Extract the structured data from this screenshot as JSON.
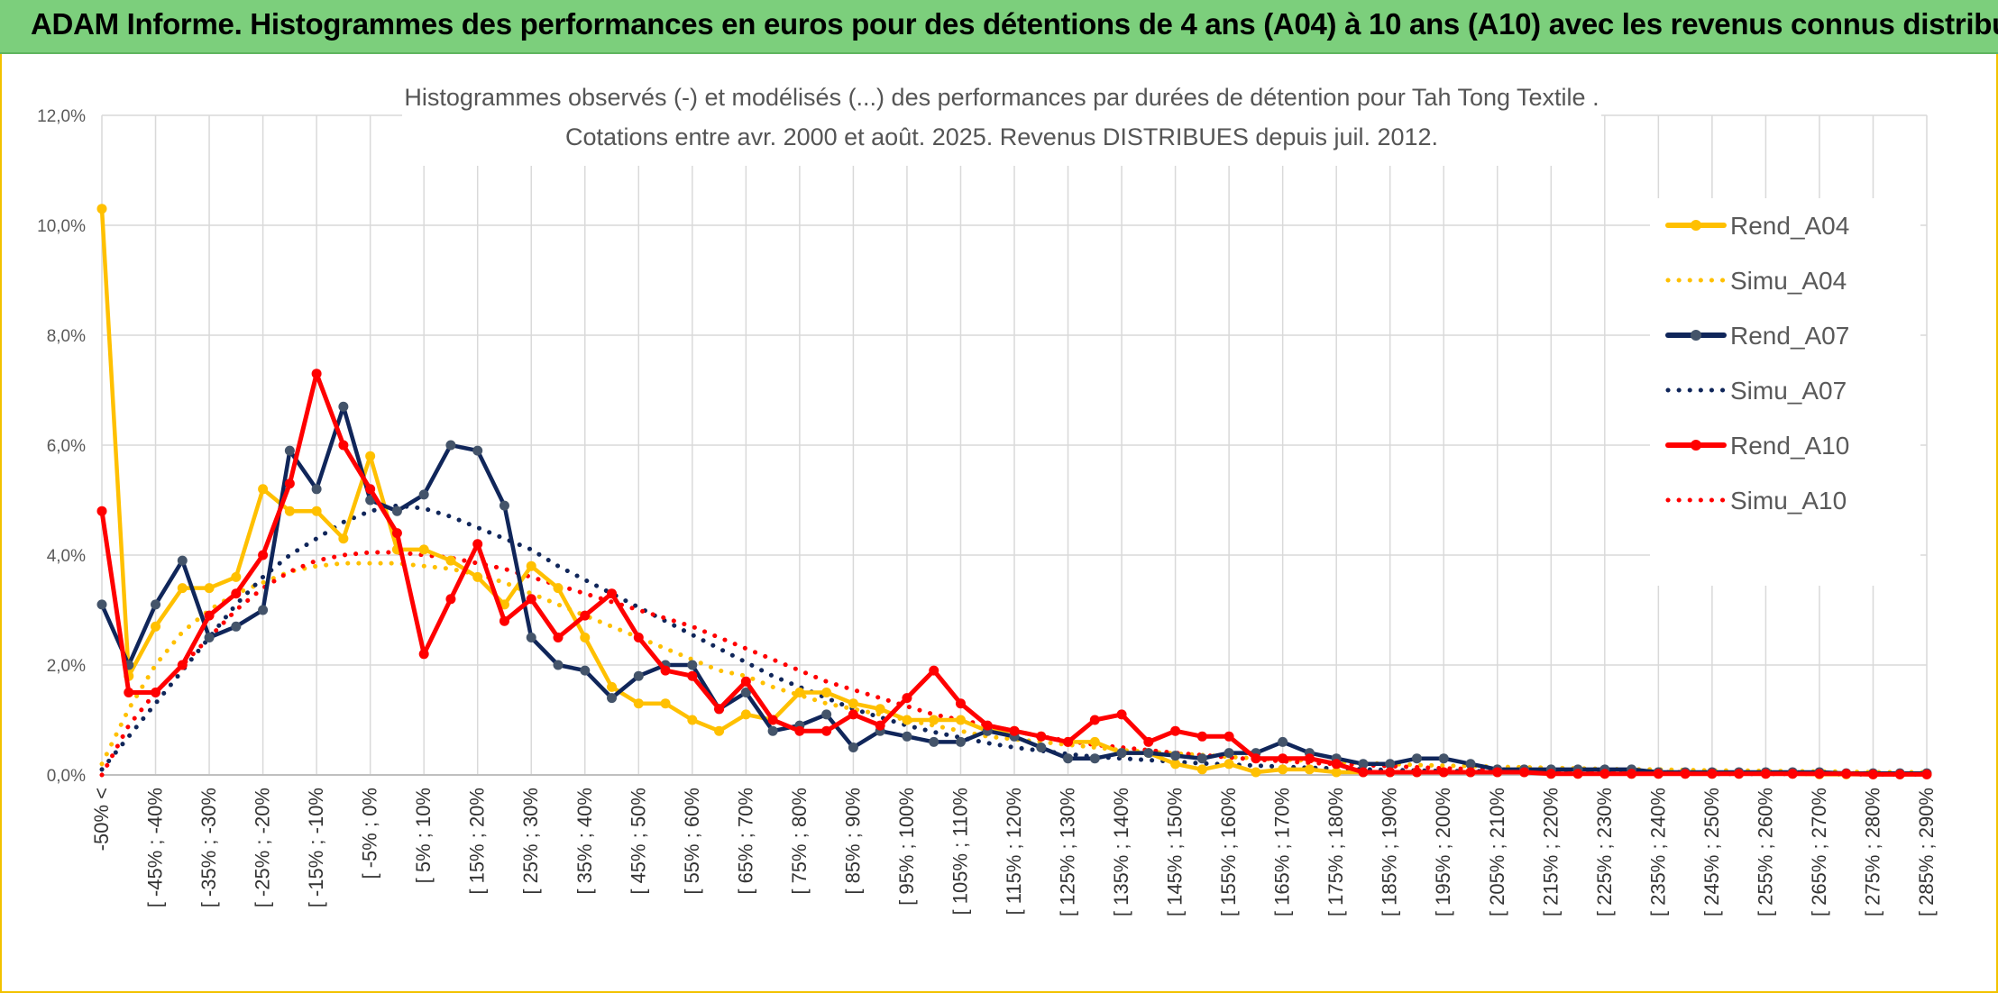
{
  "header": {
    "title": "ADAM Informe. Histogrammes des performances en euros pour des détentions de 4 ans (A04) à 10 ans (A10) avec les revenus connus distribués"
  },
  "chart_data": {
    "type": "line",
    "title_line1": "Histogrammes observés (-) et modélisés (...) des performances par durées de détention pour Tah Tong Textile .",
    "title_line2": "Cotations entre avr. 2000 et août. 2025. Revenus DISTRIBUES depuis juil. 2012.",
    "ylim": [
      0,
      12
    ],
    "yticks": [
      "0,0%",
      "2,0%",
      "4,0%",
      "6,0%",
      "8,0%",
      "10,0%",
      "12,0%"
    ],
    "grid": true,
    "legend_position": "right",
    "x_count": 69,
    "x_labels": [
      "-50% <",
      "[ -45% ; -40%",
      "[ -35% ; -30%",
      "[ -25% ; -20%",
      "[ -15% ; -10%",
      "[ -5% ; 0%",
      "[ 5% ; 10%",
      "[ 15% ; 20%",
      "[ 25% ; 30%",
      "[ 35% ; 40%",
      "[ 45% ; 50%",
      "[ 55% ; 60%",
      "[ 65% ; 70%",
      "[ 75% ; 80%",
      "[ 85% ; 90%",
      "[ 95% ; 100%",
      "[ 105% ; 110%",
      "[ 115% ; 120%",
      "[ 125% ; 130%",
      "[ 135% ; 140%",
      "[ 145% ; 150%",
      "[ 155% ; 160%",
      "[ 165% ; 170%",
      "[ 175% ; 180%",
      "[ 185% ; 190%",
      "[ 195% ; 200%",
      "[ 205% ; 210%",
      "[ 215% ; 220%",
      "[ 225% ; 230%",
      "[ 235% ; 240%",
      "[ 245% ; 250%",
      "[ 255% ; 260%",
      "[ 265% ; 270%",
      "[ 275% ; 280%",
      "[ 285% ; 290%"
    ],
    "series": [
      {
        "name": "Rend_A04",
        "color": "#ffc000",
        "style": "solid",
        "markers": true,
        "values": [
          10.3,
          1.8,
          2.7,
          3.4,
          3.4,
          3.6,
          5.2,
          4.8,
          4.8,
          4.3,
          5.8,
          4.1,
          4.1,
          3.9,
          3.6,
          3.1,
          3.8,
          3.4,
          2.5,
          1.6,
          1.3,
          1.3,
          1.0,
          0.8,
          1.1,
          1.0,
          1.5,
          1.5,
          1.3,
          1.2,
          1.0,
          1.0,
          1.0,
          0.8,
          0.8,
          0.7,
          0.6,
          0.6,
          0.4,
          0.4,
          0.2,
          0.1,
          0.2,
          0.05,
          0.1,
          0.1,
          0.05,
          0.05,
          0.05,
          0.05,
          0.05,
          0.05,
          0.05,
          0.05,
          0.02,
          0.02,
          0.02,
          0.02,
          0.02,
          0.02,
          0.02,
          0.02,
          0.02,
          0.02,
          0.01,
          0.01,
          0.01,
          0.01,
          0.01
        ]
      },
      {
        "name": "Simu_A04",
        "color": "#ffc000",
        "style": "dotted",
        "markers": false,
        "values": [
          0.2,
          1.2,
          2.0,
          2.6,
          3.0,
          3.3,
          3.5,
          3.7,
          3.8,
          3.85,
          3.85,
          3.85,
          3.8,
          3.75,
          3.65,
          3.5,
          3.3,
          3.1,
          2.9,
          2.7,
          2.5,
          2.3,
          2.1,
          1.9,
          1.8,
          1.6,
          1.45,
          1.3,
          1.2,
          1.1,
          1.0,
          0.9,
          0.8,
          0.7,
          0.65,
          0.6,
          0.55,
          0.5,
          0.45,
          0.42,
          0.39,
          0.36,
          0.33,
          0.3,
          0.28,
          0.26,
          0.24,
          0.22,
          0.2,
          0.18,
          0.17,
          0.16,
          0.15,
          0.14,
          0.13,
          0.12,
          0.11,
          0.1,
          0.1,
          0.09,
          0.08,
          0.08,
          0.07,
          0.07,
          0.06,
          0.06,
          0.05,
          0.05,
          0.05
        ]
      },
      {
        "name": "Rend_A07",
        "color": "#10265a",
        "style": "solid",
        "markers": true,
        "values": [
          3.1,
          2.0,
          3.1,
          3.9,
          2.5,
          2.7,
          3.0,
          5.9,
          5.2,
          6.7,
          5.0,
          4.8,
          5.1,
          6.0,
          5.9,
          4.9,
          2.5,
          2.0,
          1.9,
          1.4,
          1.8,
          2.0,
          2.0,
          1.2,
          1.5,
          0.8,
          0.9,
          1.1,
          0.5,
          0.8,
          0.7,
          0.6,
          0.6,
          0.8,
          0.7,
          0.5,
          0.3,
          0.3,
          0.4,
          0.4,
          0.35,
          0.3,
          0.4,
          0.4,
          0.6,
          0.4,
          0.3,
          0.2,
          0.2,
          0.3,
          0.3,
          0.2,
          0.1,
          0.1,
          0.1,
          0.1,
          0.1,
          0.1,
          0.05,
          0.05,
          0.05,
          0.05,
          0.05,
          0.05,
          0.05,
          0.03,
          0.03,
          0.03,
          0.03
        ]
      },
      {
        "name": "Simu_A07",
        "color": "#10265a",
        "style": "dotted",
        "markers": false,
        "values": [
          0.1,
          0.7,
          1.3,
          1.9,
          2.5,
          3.1,
          3.6,
          4.0,
          4.3,
          4.6,
          4.8,
          4.9,
          4.85,
          4.7,
          4.5,
          4.3,
          4.1,
          3.8,
          3.55,
          3.3,
          3.05,
          2.8,
          2.55,
          2.3,
          2.05,
          1.8,
          1.6,
          1.4,
          1.2,
          1.05,
          0.9,
          0.78,
          0.68,
          0.58,
          0.5,
          0.44,
          0.38,
          0.33,
          0.3,
          0.27,
          0.24,
          0.21,
          0.19,
          0.17,
          0.15,
          0.13,
          0.12,
          0.1,
          0.09,
          0.08,
          0.07,
          0.07,
          0.06,
          0.05,
          0.05,
          0.04,
          0.04,
          0.03,
          0.03,
          0.03,
          0.02,
          0.02,
          0.02,
          0.02,
          0.02,
          0.01,
          0.01,
          0.01,
          0.01
        ]
      },
      {
        "name": "Rend_A10",
        "color": "#ff0000",
        "style": "solid",
        "markers": true,
        "values": [
          4.8,
          1.5,
          1.5,
          2.0,
          2.9,
          3.3,
          4.0,
          5.3,
          7.3,
          6.0,
          5.2,
          4.4,
          2.2,
          3.2,
          4.2,
          2.8,
          3.2,
          2.5,
          2.9,
          3.3,
          2.5,
          1.9,
          1.8,
          1.2,
          1.7,
          1.0,
          0.8,
          0.8,
          1.1,
          0.9,
          1.4,
          1.9,
          1.3,
          0.9,
          0.8,
          0.7,
          0.6,
          1.0,
          1.1,
          0.6,
          0.8,
          0.7,
          0.7,
          0.3,
          0.3,
          0.3,
          0.2,
          0.05,
          0.05,
          0.05,
          0.05,
          0.05,
          0.05,
          0.05,
          0.02,
          0.02,
          0.02,
          0.02,
          0.02,
          0.02,
          0.02,
          0.02,
          0.02,
          0.02,
          0.02,
          0.02,
          0.01,
          0.01,
          0.01
        ]
      },
      {
        "name": "Simu_A10",
        "color": "#ff0000",
        "style": "dotted",
        "markers": false,
        "values": [
          0.0,
          0.9,
          1.5,
          2.0,
          2.5,
          3.0,
          3.4,
          3.7,
          3.9,
          4.0,
          4.05,
          4.05,
          4.0,
          3.95,
          3.85,
          3.75,
          3.6,
          3.45,
          3.3,
          3.15,
          3.0,
          2.85,
          2.7,
          2.5,
          2.3,
          2.1,
          1.9,
          1.7,
          1.55,
          1.4,
          1.25,
          1.1,
          1.0,
          0.9,
          0.8,
          0.7,
          0.62,
          0.55,
          0.5,
          0.45,
          0.4,
          0.36,
          0.32,
          0.28,
          0.25,
          0.22,
          0.2,
          0.18,
          0.16,
          0.14,
          0.12,
          0.11,
          0.1,
          0.09,
          0.08,
          0.07,
          0.06,
          0.06,
          0.05,
          0.05,
          0.04,
          0.04,
          0.04,
          0.03,
          0.03,
          0.03,
          0.03,
          0.02,
          0.02
        ]
      }
    ]
  }
}
